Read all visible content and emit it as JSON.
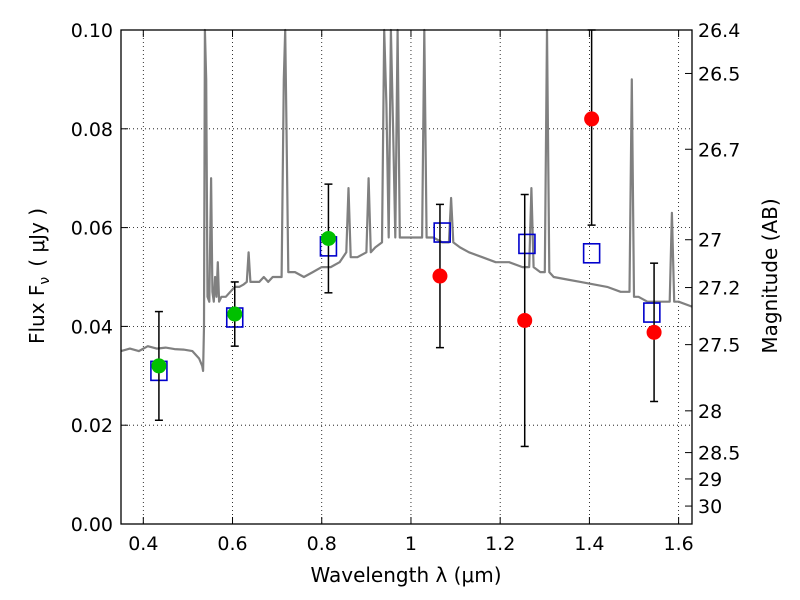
{
  "chart_data": {
    "type": "scatter",
    "xlabel": "Wavelength  λ (μm)",
    "ylabel": "Flux  F",
    "ylabel_sub": "ν",
    "ylabel_unit": "( μJy )",
    "y2label": "Magnitude (AB)",
    "xlim": [
      0.35,
      1.63
    ],
    "ylim": [
      0.0,
      0.1
    ],
    "grid": true,
    "x_ticks": [
      0.4,
      0.6,
      0.8,
      1.0,
      1.2,
      1.4,
      1.6
    ],
    "x_tick_labels": [
      "0.4",
      "0.6",
      "0.8",
      "1",
      "1.2",
      "1.4",
      "1.6"
    ],
    "y_ticks": [
      0.0,
      0.02,
      0.04,
      0.06,
      0.08,
      0.1
    ],
    "y_tick_labels": [
      "0.00",
      "0.02",
      "0.04",
      "0.06",
      "0.08",
      "0.10"
    ],
    "y2_ticks": [
      "26.4",
      "26.5",
      "26.7",
      "27",
      "27.2",
      "27.5",
      "28",
      "28.5",
      "29",
      "30"
    ],
    "colors": {
      "template": "#808080",
      "observed_ground": "#00c000",
      "observed_hst": "#ff0000",
      "model": "#0000cc",
      "errorbar": "#000000"
    },
    "series": [
      {
        "kind": "line",
        "color": "#808080",
        "x": [
          0.35,
          0.37,
          0.39,
          0.41,
          0.43,
          0.45,
          0.47,
          0.49,
          0.51,
          0.525,
          0.532,
          0.534,
          0.536,
          0.538,
          0.541,
          0.544,
          0.548,
          0.552,
          0.555,
          0.558,
          0.561,
          0.564,
          0.567,
          0.57,
          0.575,
          0.585,
          0.595,
          0.605,
          0.615,
          0.625,
          0.632,
          0.636,
          0.64,
          0.65,
          0.66,
          0.67,
          0.68,
          0.69,
          0.7,
          0.71,
          0.715,
          0.718,
          0.721,
          0.725,
          0.74,
          0.76,
          0.78,
          0.8,
          0.82,
          0.84,
          0.855,
          0.86,
          0.865,
          0.88,
          0.9,
          0.905,
          0.91,
          0.92,
          0.935,
          0.94,
          0.945,
          0.95,
          0.955,
          0.96,
          0.965,
          0.97,
          0.975,
          0.99,
          1.01,
          1.025,
          1.03,
          1.035,
          1.05,
          1.07,
          1.085,
          1.09,
          1.095,
          1.11,
          1.13,
          1.16,
          1.19,
          1.22,
          1.25,
          1.265,
          1.27,
          1.275,
          1.29,
          1.3,
          1.305,
          1.31,
          1.32,
          1.35,
          1.38,
          1.41,
          1.44,
          1.47,
          1.49,
          1.495,
          1.5,
          1.505,
          1.51,
          1.53,
          1.55,
          1.58,
          1.585,
          1.59,
          1.6,
          1.63
        ],
        "y": [
          0.035,
          0.0355,
          0.035,
          0.036,
          0.0355,
          0.0357,
          0.0354,
          0.0353,
          0.035,
          0.0335,
          0.032,
          0.031,
          0.04,
          0.1,
          0.09,
          0.046,
          0.045,
          0.07,
          0.047,
          0.045,
          0.05,
          0.046,
          0.053,
          0.045,
          0.046,
          0.046,
          0.047,
          0.048,
          0.048,
          0.0485,
          0.049,
          0.055,
          0.049,
          0.049,
          0.049,
          0.05,
          0.049,
          0.05,
          0.05,
          0.05,
          0.09,
          0.1,
          0.08,
          0.051,
          0.051,
          0.05,
          0.051,
          0.052,
          0.052,
          0.053,
          0.055,
          0.068,
          0.054,
          0.054,
          0.055,
          0.07,
          0.055,
          0.056,
          0.057,
          0.1,
          0.085,
          0.058,
          0.1,
          0.08,
          0.058,
          0.1,
          0.058,
          0.058,
          0.058,
          0.058,
          0.1,
          0.058,
          0.058,
          0.057,
          0.057,
          0.066,
          0.057,
          0.056,
          0.055,
          0.054,
          0.053,
          0.053,
          0.052,
          0.052,
          0.068,
          0.052,
          0.051,
          0.051,
          0.1,
          0.051,
          0.05,
          0.0495,
          0.049,
          0.0485,
          0.048,
          0.047,
          0.047,
          0.09,
          0.046,
          0.046,
          0.046,
          0.045,
          0.045,
          0.045,
          0.063,
          0.045,
          0.045,
          0.044
        ]
      },
      {
        "kind": "points-circle",
        "color": "#00c000",
        "x": [
          0.435,
          0.605,
          0.815
        ],
        "y": [
          0.032,
          0.0425,
          0.0578
        ],
        "err": [
          0.011,
          0.0065,
          0.011
        ]
      },
      {
        "kind": "points-circle",
        "color": "#ff0000",
        "x": [
          1.065,
          1.255,
          1.405,
          1.545
        ],
        "y": [
          0.0502,
          0.0412,
          0.082,
          0.0388
        ],
        "err": [
          0.0145,
          0.0255,
          0.0215,
          0.014
        ]
      },
      {
        "kind": "points-square",
        "color": "#0000cc",
        "x": [
          0.435,
          0.605,
          0.815,
          1.07,
          1.26,
          1.405,
          1.54
        ],
        "y": [
          0.031,
          0.0418,
          0.0562,
          0.059,
          0.0567,
          0.0548,
          0.0428
        ]
      }
    ]
  }
}
